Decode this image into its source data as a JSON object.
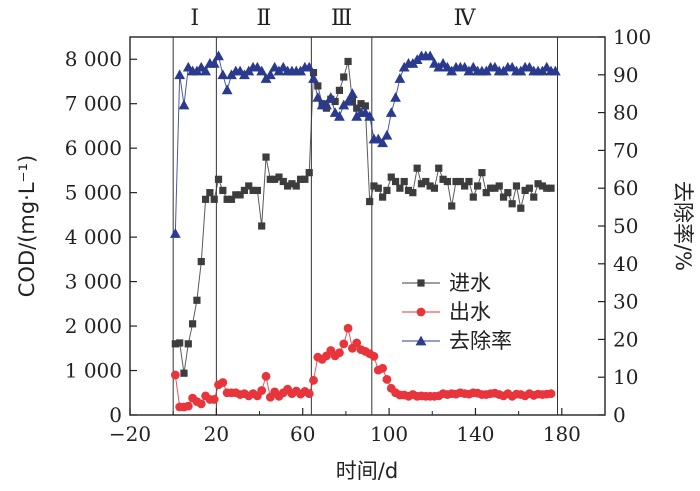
{
  "chart_data": {
    "type": "line",
    "xlabel": "时间/d",
    "ylabel_left": "COD/(mg·L⁻¹)",
    "ylabel_right": "去除率/%",
    "xlim": [
      -20,
      200
    ],
    "ylim_left": [
      0,
      8500
    ],
    "ylim_right": [
      0,
      100
    ],
    "x_ticks": [
      -20,
      20,
      60,
      100,
      140,
      180
    ],
    "x_tick_labels": [
      "−20",
      "20",
      "60",
      "100",
      "140",
      "180"
    ],
    "y_left_ticks": [
      0,
      1000,
      2000,
      3000,
      4000,
      5000,
      6000,
      7000,
      8000
    ],
    "y_left_tick_labels": [
      "0",
      "1 000",
      "2 000",
      "3 000",
      "4 000",
      "5 000",
      "6 000",
      "7 000",
      "8 000"
    ],
    "y_right_ticks": [
      0,
      10,
      20,
      30,
      40,
      50,
      60,
      70,
      80,
      90,
      100
    ],
    "y_right_tick_labels": [
      "0",
      "10",
      "20",
      "30",
      "40",
      "50",
      "60",
      "70",
      "80",
      "90",
      "100"
    ],
    "phases": [
      {
        "label": "Ⅰ",
        "boundary_start": 0,
        "boundary_end": 20
      },
      {
        "label": "Ⅱ",
        "boundary_start": 20,
        "boundary_end": 64
      },
      {
        "label": "Ⅲ",
        "boundary_start": 64,
        "boundary_end": 92
      },
      {
        "label": "Ⅳ",
        "boundary_start": 92,
        "boundary_end": 178
      }
    ],
    "legend_position": "center-right",
    "series": [
      {
        "name": "进水",
        "axis": "left",
        "marker": "square",
        "color": "#3d3d3d",
        "x": [
          1,
          3,
          5,
          7,
          9,
          11,
          13,
          15,
          17,
          19,
          21,
          23,
          25,
          27,
          29,
          31,
          33,
          35,
          37,
          39,
          41,
          43,
          45,
          47,
          49,
          51,
          53,
          55,
          57,
          59,
          61,
          63,
          65,
          67,
          69,
          71,
          73,
          75,
          77,
          79,
          81,
          83,
          85,
          87,
          89,
          91,
          93,
          95,
          97,
          99,
          101,
          103,
          105,
          107,
          109,
          111,
          113,
          115,
          117,
          119,
          121,
          123,
          125,
          127,
          129,
          131,
          133,
          135,
          137,
          139,
          141,
          143,
          145,
          147,
          149,
          151,
          153,
          155,
          157,
          159,
          161,
          163,
          165,
          167,
          169,
          171,
          173,
          175
        ],
        "y": [
          1600,
          1620,
          940,
          1600,
          2050,
          2580,
          3450,
          4850,
          5000,
          4850,
          5300,
          5050,
          4850,
          4850,
          4950,
          4950,
          5050,
          5150,
          5050,
          5050,
          4250,
          5800,
          5300,
          5300,
          5350,
          5250,
          5150,
          5200,
          5150,
          5300,
          5300,
          5450,
          7700,
          7400,
          7000,
          6900,
          7100,
          7050,
          7300,
          7600,
          7950,
          7050,
          6900,
          7000,
          6950,
          4800,
          5150,
          5100,
          4900,
          5050,
          5350,
          5250,
          5100,
          5250,
          5050,
          5000,
          5550,
          5200,
          5250,
          5150,
          5100,
          5550,
          5300,
          5250,
          4700,
          5250,
          5250,
          5150,
          5250,
          4900,
          5150,
          5450,
          5000,
          5100,
          5100,
          5150,
          4900,
          5000,
          4750,
          5150,
          4650,
          5050,
          5100,
          4900,
          5200,
          5150,
          5100,
          5100
        ]
      },
      {
        "name": "出水",
        "axis": "left",
        "marker": "circle",
        "color": "#e8343b",
        "x": [
          1,
          3,
          5,
          7,
          9,
          11,
          13,
          15,
          17,
          19,
          21,
          23,
          25,
          27,
          29,
          31,
          33,
          35,
          37,
          39,
          41,
          43,
          45,
          47,
          49,
          51,
          53,
          55,
          57,
          59,
          61,
          63,
          65,
          67,
          69,
          71,
          73,
          75,
          77,
          79,
          81,
          83,
          85,
          87,
          89,
          91,
          93,
          95,
          97,
          99,
          101,
          103,
          105,
          107,
          109,
          111,
          113,
          115,
          117,
          119,
          121,
          123,
          125,
          127,
          129,
          131,
          133,
          135,
          137,
          139,
          141,
          143,
          145,
          147,
          149,
          151,
          153,
          155,
          157,
          159,
          161,
          163,
          165,
          167,
          169,
          171,
          173,
          175
        ],
        "y": [
          900,
          180,
          180,
          200,
          380,
          300,
          250,
          430,
          350,
          350,
          680,
          730,
          500,
          500,
          500,
          460,
          480,
          430,
          480,
          430,
          550,
          870,
          400,
          520,
          420,
          500,
          580,
          480,
          540,
          470,
          530,
          480,
          780,
          1300,
          1250,
          1330,
          1450,
          1330,
          1400,
          1600,
          1950,
          1500,
          1620,
          1470,
          1430,
          1380,
          1320,
          1010,
          1050,
          800,
          600,
          500,
          450,
          450,
          420,
          460,
          420,
          430,
          420,
          420,
          420,
          430,
          480,
          460,
          480,
          470,
          500,
          480,
          470,
          500,
          490,
          460,
          460,
          480,
          490,
          460,
          430,
          480,
          420,
          470,
          460,
          430,
          480,
          440,
          470,
          460,
          470,
          480
        ]
      },
      {
        "name": "去除率",
        "axis": "right",
        "marker": "triangle",
        "color": "#2a3a8f",
        "x": [
          1,
          3,
          5,
          7,
          9,
          11,
          13,
          15,
          17,
          19,
          21,
          23,
          25,
          27,
          29,
          31,
          33,
          35,
          37,
          39,
          41,
          43,
          45,
          47,
          49,
          51,
          53,
          55,
          57,
          59,
          61,
          63,
          65,
          67,
          69,
          71,
          73,
          75,
          77,
          79,
          81,
          83,
          85,
          87,
          89,
          91,
          93,
          95,
          97,
          99,
          101,
          103,
          105,
          107,
          109,
          111,
          113,
          115,
          117,
          119,
          121,
          123,
          125,
          127,
          129,
          131,
          133,
          135,
          137,
          139,
          141,
          143,
          145,
          147,
          149,
          151,
          153,
          155,
          157,
          159,
          161,
          163,
          165,
          167,
          169,
          171,
          173,
          175,
          177
        ],
        "y": [
          48,
          90,
          82,
          92,
          91,
          91,
          92,
          91,
          93,
          93,
          95,
          90,
          86,
          90,
          91,
          91,
          90,
          91,
          92,
          92,
          91,
          89,
          90,
          92,
          91,
          92,
          91,
          91,
          91,
          91,
          92,
          92,
          89,
          84,
          82,
          82,
          84,
          80,
          79,
          82,
          83,
          85,
          79,
          80,
          80,
          79,
          73,
          73,
          72,
          74,
          80,
          84,
          89,
          92,
          93,
          93,
          94,
          95,
          95,
          95,
          93,
          92,
          93,
          92,
          91,
          92,
          92,
          92,
          91,
          92,
          91,
          91,
          91,
          92,
          92,
          91,
          91,
          92,
          92,
          91,
          91,
          92,
          92,
          91,
          91,
          91,
          92,
          91,
          91
        ]
      }
    ]
  }
}
